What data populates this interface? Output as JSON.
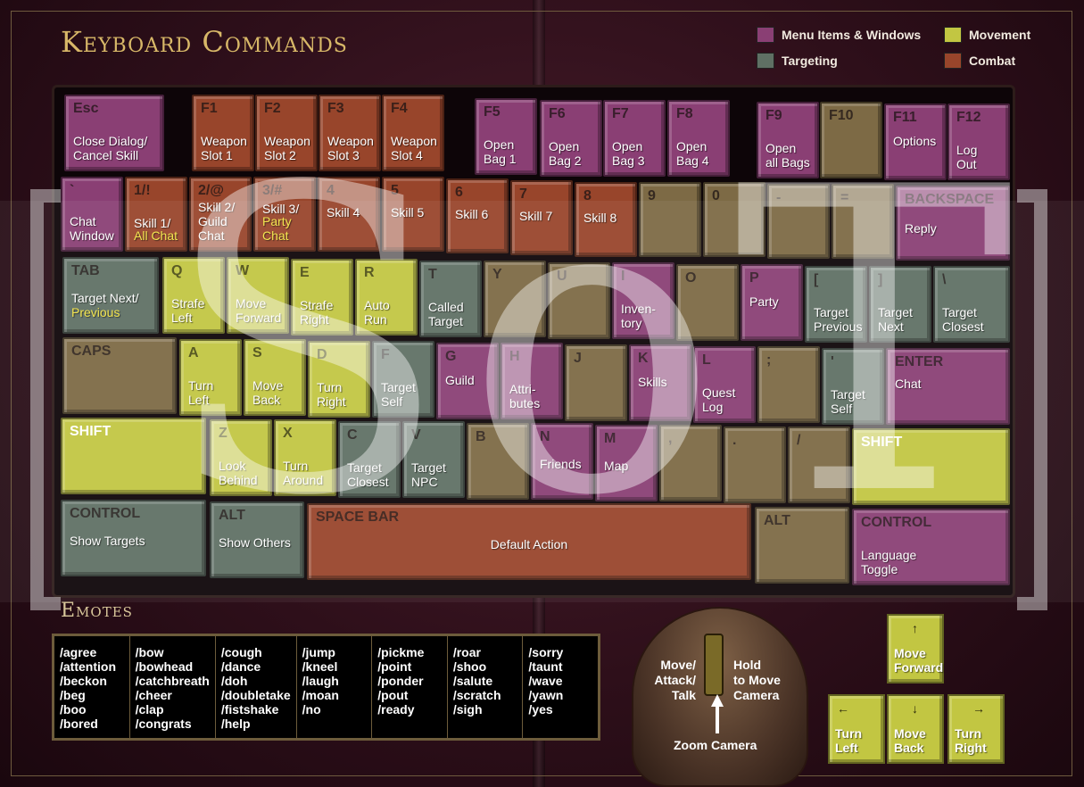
{
  "title": "Keyboard Commands",
  "legend": [
    {
      "label": "Menu Items & Windows",
      "color": "#8a3f74"
    },
    {
      "label": "Movement",
      "color": "#c2c642"
    },
    {
      "label": "Targeting",
      "color": "#5f7064"
    },
    {
      "label": "Combat",
      "color": "#98452b"
    }
  ],
  "keys": {
    "esc": {
      "top": "Esc",
      "label": "Close Dialog/\nCancel Skill"
    },
    "f1": {
      "top": "F1",
      "label": "Weapon\nSlot 1"
    },
    "f2": {
      "top": "F2",
      "label": "Weapon\nSlot 2"
    },
    "f3": {
      "top": "F3",
      "label": "Weapon\nSlot 3"
    },
    "f4": {
      "top": "F4",
      "label": "Weapon\nSlot 4"
    },
    "f5": {
      "top": "F5",
      "label": "Open\nBag 1"
    },
    "f6": {
      "top": "F6",
      "label": "Open\nBag 2"
    },
    "f7": {
      "top": "F7",
      "label": "Open\nBag 3"
    },
    "f8": {
      "top": "F8",
      "label": "Open\nBag 4"
    },
    "f9": {
      "top": "F9",
      "label": "Open\nall Bags"
    },
    "f10": {
      "top": "F10",
      "label": ""
    },
    "f11": {
      "top": "F11",
      "label": "Options"
    },
    "f12": {
      "top": "F12",
      "label": "Log\nOut"
    },
    "tilde": {
      "top": "`",
      "label": "Chat\nWindow"
    },
    "n1": {
      "top": "1/!",
      "label": "Skill 1/",
      "label2": "All Chat"
    },
    "n2": {
      "top": "2/@",
      "label": "Skill 2/\nGuild\nChat"
    },
    "n3": {
      "top": "3/#",
      "label": "Skill 3/",
      "label2": "Party\nChat"
    },
    "n4": {
      "top": "4",
      "label": "Skill 4"
    },
    "n5": {
      "top": "5",
      "label": "Skill 5"
    },
    "n6": {
      "top": "6",
      "label": "Skill 6"
    },
    "n7": {
      "top": "7",
      "label": "Skill 7"
    },
    "n8": {
      "top": "8",
      "label": "Skill 8"
    },
    "n9": {
      "top": "9",
      "label": ""
    },
    "n0": {
      "top": "0",
      "label": ""
    },
    "minus": {
      "top": "-",
      "label": ""
    },
    "equal": {
      "top": "=",
      "label": ""
    },
    "backspace": {
      "top": "BACKSPACE",
      "label": "Reply"
    },
    "tab": {
      "top": "TAB",
      "label": "Target Next/",
      "label2": "Previous"
    },
    "q": {
      "top": "Q",
      "label": "Strafe\nLeft"
    },
    "w": {
      "top": "W",
      "label": "Move\nForward"
    },
    "e": {
      "top": "E",
      "label": "Strafe\nRight"
    },
    "r": {
      "top": "R",
      "label": "Auto\nRun"
    },
    "t": {
      "top": "T",
      "label": "Called\nTarget"
    },
    "y": {
      "top": "Y",
      "label": ""
    },
    "u": {
      "top": "U",
      "label": ""
    },
    "i": {
      "top": "I",
      "label": "Inven-\ntory"
    },
    "o": {
      "top": "O",
      "label": ""
    },
    "p": {
      "top": "P",
      "label": "Party"
    },
    "lbr": {
      "top": "[",
      "label": "Target\nPrevious"
    },
    "rbr": {
      "top": "]",
      "label": "Target\nNext"
    },
    "bslash": {
      "top": "\\",
      "label": "Target\nClosest"
    },
    "caps": {
      "top": "CAPS",
      "label": ""
    },
    "a": {
      "top": "A",
      "label": "Turn\nLeft"
    },
    "s": {
      "top": "S",
      "label": "Move\nBack"
    },
    "d": {
      "top": "D",
      "label": "Turn\nRight"
    },
    "f": {
      "top": "F",
      "label": "Target\nSelf"
    },
    "g": {
      "top": "G",
      "label": "Guild"
    },
    "h": {
      "top": "H",
      "label": "Attri-\nbutes"
    },
    "j": {
      "top": "J",
      "label": ""
    },
    "k": {
      "top": "K",
      "label": "Skills"
    },
    "l": {
      "top": "L",
      "label": "Quest\nLog"
    },
    "semi": {
      "top": ";",
      "label": ""
    },
    "quote": {
      "top": "'",
      "label": "Target\nSelf"
    },
    "enter": {
      "top": "ENTER",
      "label": "Chat"
    },
    "lshift": {
      "top": "SHIFT",
      "label": ""
    },
    "z": {
      "top": "Z",
      "label": "Look\nBehind"
    },
    "x": {
      "top": "X",
      "label": "Turn\nAround"
    },
    "c": {
      "top": "C",
      "label": "Target\nClosest"
    },
    "v": {
      "top": "V",
      "label": "Target\nNPC"
    },
    "b": {
      "top": "B",
      "label": ""
    },
    "n": {
      "top": "N",
      "label": "Friends"
    },
    "m": {
      "top": "M",
      "label": "Map"
    },
    "comma": {
      "top": ",",
      "label": ""
    },
    "period": {
      "top": ".",
      "label": ""
    },
    "slash": {
      "top": "/",
      "label": ""
    },
    "rshift": {
      "top": "SHIFT",
      "label": ""
    },
    "lctrl": {
      "top": "CONTROL",
      "label": "Show Targets"
    },
    "lalt": {
      "top": "ALT",
      "label": "Show Others"
    },
    "space": {
      "top": "SPACE BAR",
      "label": "Default Action"
    },
    "ralt": {
      "top": "ALT",
      "label": ""
    },
    "rctrl": {
      "top": "CONTROL",
      "label": "Language\nToggle"
    }
  },
  "emotes_title": "Emotes",
  "emotes": [
    [
      "/agree",
      "/attention",
      "/beckon",
      "/beg",
      "/boo",
      "/bored"
    ],
    [
      "/bow",
      "/bowhead",
      "/catchbreath",
      "/cheer",
      "/clap",
      "/congrats"
    ],
    [
      "/cough",
      "/dance",
      "/doh",
      "/doubletake",
      "/fistshake",
      "/help"
    ],
    [
      "/jump",
      "/kneel",
      "/laugh",
      "/moan",
      "/no"
    ],
    [
      "/pickme",
      "/point",
      "/ponder",
      "/pout",
      "/ready"
    ],
    [
      "/roar",
      "/shoo",
      "/salute",
      "/scratch",
      "/sigh"
    ],
    [
      "/sorry",
      "/taunt",
      "/wave",
      "/yawn",
      "/yes"
    ]
  ],
  "mouse": {
    "left": "Move/\nAttack/\nTalk",
    "right": "Hold\nto Move\nCamera",
    "wheel": "Zoom Camera"
  },
  "arrows": {
    "up": {
      "arrow": "↑",
      "label": "Move\nForward"
    },
    "left": {
      "arrow": "←",
      "label": "Turn\nLeft"
    },
    "down": {
      "arrow": "↓",
      "label": "Move\nBack"
    },
    "right": {
      "arrow": "→",
      "label": "Turn\nRight"
    }
  },
  "watermark": "SoT"
}
